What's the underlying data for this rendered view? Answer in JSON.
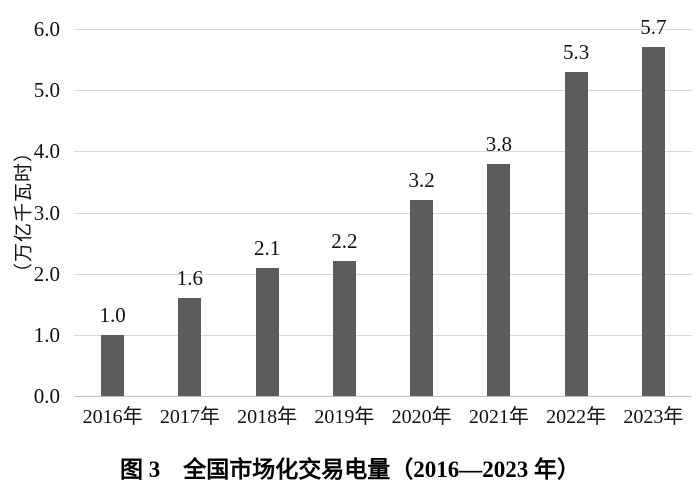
{
  "figure": {
    "caption": "图 3　全国市场化交易电量（2016—2023 年）"
  },
  "chart_data": {
    "type": "bar",
    "categories": [
      "2016年",
      "2017年",
      "2018年",
      "2019年",
      "2020年",
      "2021年",
      "2022年",
      "2023年"
    ],
    "values": [
      1.0,
      1.6,
      2.1,
      2.2,
      3.2,
      3.8,
      5.3,
      5.7
    ],
    "value_labels": [
      "1.0",
      "1.6",
      "2.1",
      "2.2",
      "3.2",
      "3.8",
      "5.3",
      "5.7"
    ],
    "title": "",
    "caption": "图 3　全国市场化交易电量（2016—2023 年）",
    "xlabel": "",
    "ylabel": "（万亿千瓦时）",
    "ylim": [
      0,
      6
    ],
    "ytick_step": 1.0,
    "yticks": [
      "6.0",
      "5.0",
      "4.0",
      "3.0",
      "2.0",
      "1.0",
      "0.0"
    ],
    "grid": true,
    "legend": "none",
    "bar_color": "#5c5c5c",
    "gridline_color": "#d9d9d9",
    "axis_line_color": "#c3c3c3",
    "text_color": "#111111"
  }
}
